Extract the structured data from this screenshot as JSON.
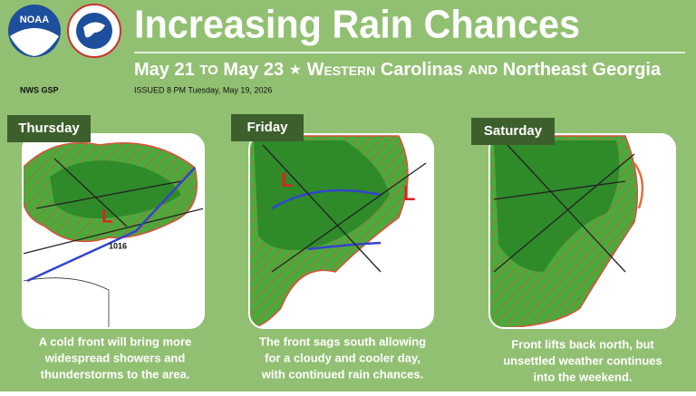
{
  "header": {
    "title": "Increasing Rain Chances",
    "subtitle": [
      "May 21",
      "to",
      "May 23",
      "★",
      "Western",
      "Carolinas",
      "and",
      "Northeast Georgia"
    ],
    "office": "NWS GSP",
    "issued": "ISSUED 8 PM Tuesday, May 19, 2026",
    "logo": "NOAA"
  },
  "panels": [
    {
      "day": "Thursday",
      "map_label": "1016",
      "caption": [
        "A cold front will bring more",
        "widespread showers and",
        "thunderstorms to the area."
      ]
    },
    {
      "day": "Friday",
      "caption": [
        "The front sags south allowing",
        "for a cloudy and cooler day,",
        "with continued rain chances."
      ]
    },
    {
      "day": "Saturday",
      "caption": [
        "Front lifts back north, but",
        "unsettled weather continues",
        "into the weekend."
      ]
    }
  ]
}
